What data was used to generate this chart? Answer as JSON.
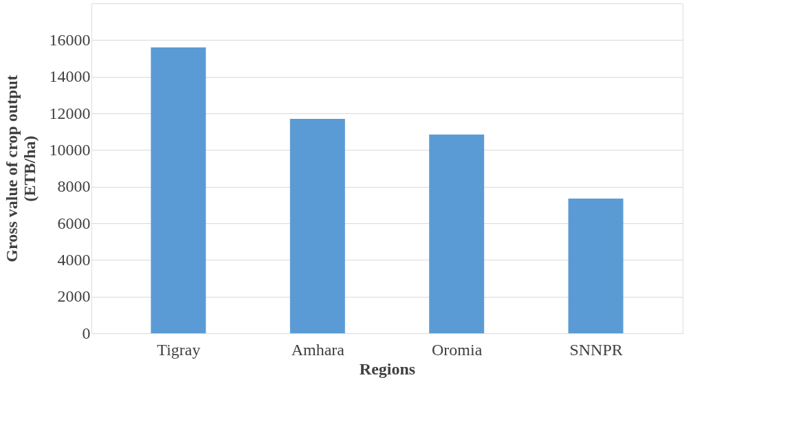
{
  "chart_data": {
    "type": "bar",
    "xlabel": "Regions",
    "ylabel": "Gross value of crop output\n(ETB/ha)",
    "categories": [
      "Tigray",
      "Amhara",
      "Oromia",
      "SNNPR"
    ],
    "values": [
      15600,
      11700,
      10850,
      7350
    ],
    "color": "#5b9bd5",
    "ylim": [
      0,
      18000
    ],
    "yticks": [
      0,
      2000,
      4000,
      6000,
      8000,
      10000,
      12000,
      14000,
      16000,
      {
        "value": 18000,
        "label": null
      }
    ],
    "grid": "y"
  }
}
